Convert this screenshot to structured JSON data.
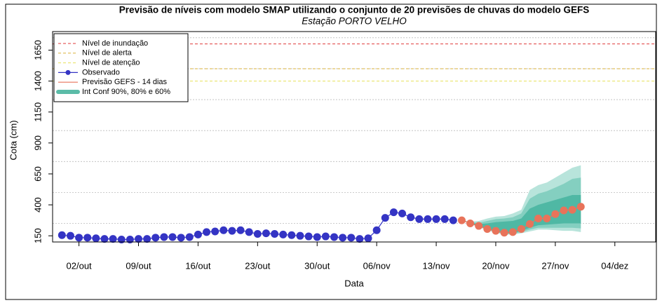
{
  "chart_data": {
    "type": "line",
    "title": "Previsão de níveis com modelo SMAP utilizando o conjunto de 20 previsões de chuvas do modelo GEFS",
    "subtitle": "Estação PORTO VELHO",
    "xlabel": "Data",
    "ylabel": "Cota (cm)",
    "xlim": [
      -3.1,
      67.8
    ],
    "ylim": [
      100,
      1800
    ],
    "xticks": [
      {
        "value": 0,
        "label": "02/out"
      },
      {
        "value": 7,
        "label": "09/out"
      },
      {
        "value": 14,
        "label": "16/out"
      },
      {
        "value": 21,
        "label": "23/out"
      },
      {
        "value": 28,
        "label": "30/out"
      },
      {
        "value": 35,
        "label": "06/nov"
      },
      {
        "value": 42,
        "label": "13/nov"
      },
      {
        "value": 49,
        "label": "20/nov"
      },
      {
        "value": 56,
        "label": "27/nov"
      },
      {
        "value": 63,
        "label": "04/dez"
      }
    ],
    "yticks": [
      150,
      400,
      650,
      900,
      1150,
      1400,
      1650
    ],
    "grid_lines": [
      250,
      500,
      750,
      1000,
      1250,
      1500,
      1750
    ],
    "legend": "top-left",
    "reference_lines": [
      {
        "name": "Nível de inundação",
        "value": 1700,
        "color": "#e03a3a"
      },
      {
        "name": "Nível de alerta",
        "value": 1500,
        "color": "#d9b23a"
      },
      {
        "name": "Nível de atenção",
        "value": 1400,
        "color": "#e6e05a"
      }
    ],
    "series": [
      {
        "name": "Observado",
        "color": "#3434c4",
        "x": [
          -2,
          -1,
          0,
          1,
          2,
          3,
          4,
          5,
          6,
          7,
          8,
          9,
          10,
          11,
          12,
          13,
          14,
          15,
          16,
          17,
          18,
          19,
          20,
          21,
          22,
          23,
          24,
          25,
          26,
          27,
          28,
          29,
          30,
          31,
          32,
          33,
          34,
          35,
          36,
          37,
          38,
          39,
          40,
          41,
          42,
          43,
          44
        ],
        "values": [
          155,
          150,
          135,
          135,
          130,
          125,
          125,
          120,
          120,
          125,
          125,
          135,
          140,
          140,
          135,
          140,
          160,
          180,
          185,
          195,
          190,
          195,
          180,
          165,
          170,
          165,
          160,
          155,
          150,
          145,
          140,
          145,
          140,
          135,
          135,
          125,
          130,
          195,
          295,
          340,
          330,
          300,
          285,
          285,
          285,
          285,
          275
        ]
      },
      {
        "name": "Previsão GEFS - 14 dias",
        "color": "#e8735a",
        "x": [
          45,
          46,
          47,
          48,
          49,
          50,
          51,
          52,
          53,
          54,
          55,
          56,
          57,
          58,
          59
        ],
        "values": [
          275,
          250,
          230,
          205,
          190,
          175,
          180,
          205,
          245,
          290,
          290,
          325,
          355,
          360,
          385
        ]
      }
    ],
    "intervals": {
      "name": "Int Conf 90%, 80% e 60%",
      "color": "#5bbca8",
      "x": [
        45,
        46,
        47,
        48,
        49,
        50,
        51,
        52,
        53,
        54,
        55,
        56,
        57,
        58,
        59
      ],
      "bands": [
        {
          "color": "#b8e4db",
          "upper": [
            275,
            265,
            270,
            290,
            305,
            310,
            330,
            360,
            520,
            560,
            580,
            620,
            660,
            700,
            720
          ],
          "lower": [
            275,
            245,
            220,
            195,
            175,
            160,
            160,
            170,
            185,
            200,
            200,
            195,
            190,
            190,
            180
          ]
        },
        {
          "color": "#84cfc0",
          "upper": [
            275,
            260,
            255,
            270,
            285,
            290,
            300,
            330,
            450,
            490,
            510,
            540,
            570,
            610,
            620
          ],
          "lower": [
            275,
            248,
            225,
            200,
            180,
            165,
            165,
            180,
            200,
            215,
            215,
            215,
            215,
            215,
            210
          ]
        },
        {
          "color": "#4fb8a4",
          "upper": [
            275,
            255,
            245,
            250,
            260,
            265,
            270,
            290,
            370,
            400,
            420,
            440,
            460,
            480,
            480
          ],
          "lower": [
            275,
            250,
            228,
            205,
            185,
            170,
            170,
            190,
            215,
            235,
            240,
            245,
            250,
            250,
            250
          ]
        }
      ]
    }
  }
}
